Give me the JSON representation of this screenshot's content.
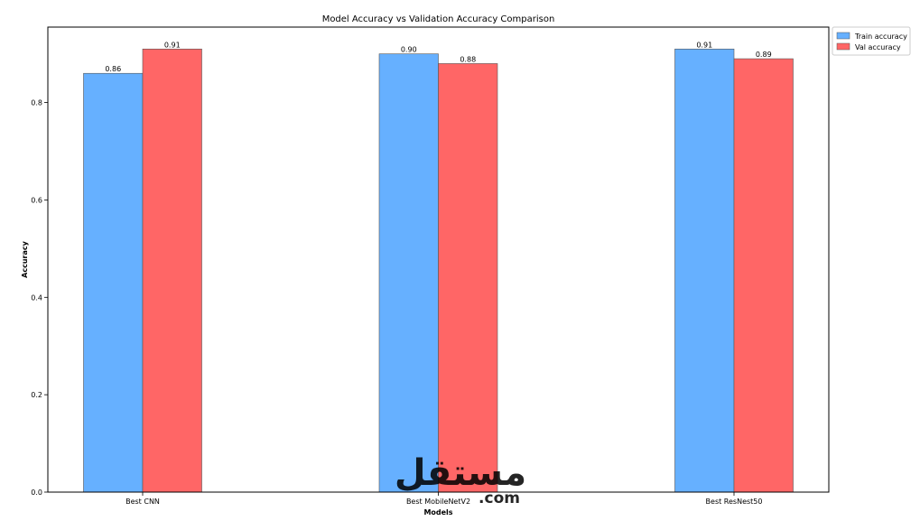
{
  "chart_data": {
    "type": "bar",
    "title": "Model Accuracy vs Validation Accuracy Comparison",
    "xlabel": "Models",
    "ylabel": "Accuracy",
    "categories": [
      "Best CNN",
      "Best MobileNetV2",
      "Best ResNest50"
    ],
    "series": [
      {
        "name": "Train accuracy",
        "color": "#66B0FF",
        "values": [
          0.86,
          0.9,
          0.91
        ],
        "labels": [
          "0.86",
          "0.90",
          "0.91"
        ]
      },
      {
        "name": "Val accuracy",
        "color": "#FF6666",
        "values": [
          0.91,
          0.88,
          0.89
        ],
        "labels": [
          "0.91",
          "0.88",
          "0.89"
        ]
      }
    ],
    "ylim": [
      0,
      0.955
    ],
    "yticks": [
      0.0,
      0.2,
      0.4,
      0.6,
      0.8
    ],
    "ytick_labels": [
      "0.0",
      "0.2",
      "0.4",
      "0.6",
      "0.8"
    ],
    "grid": false,
    "legend_position": "upper-right-outside"
  },
  "watermark": {
    "logo_text": "مستقل",
    "domain_text": ".com"
  }
}
